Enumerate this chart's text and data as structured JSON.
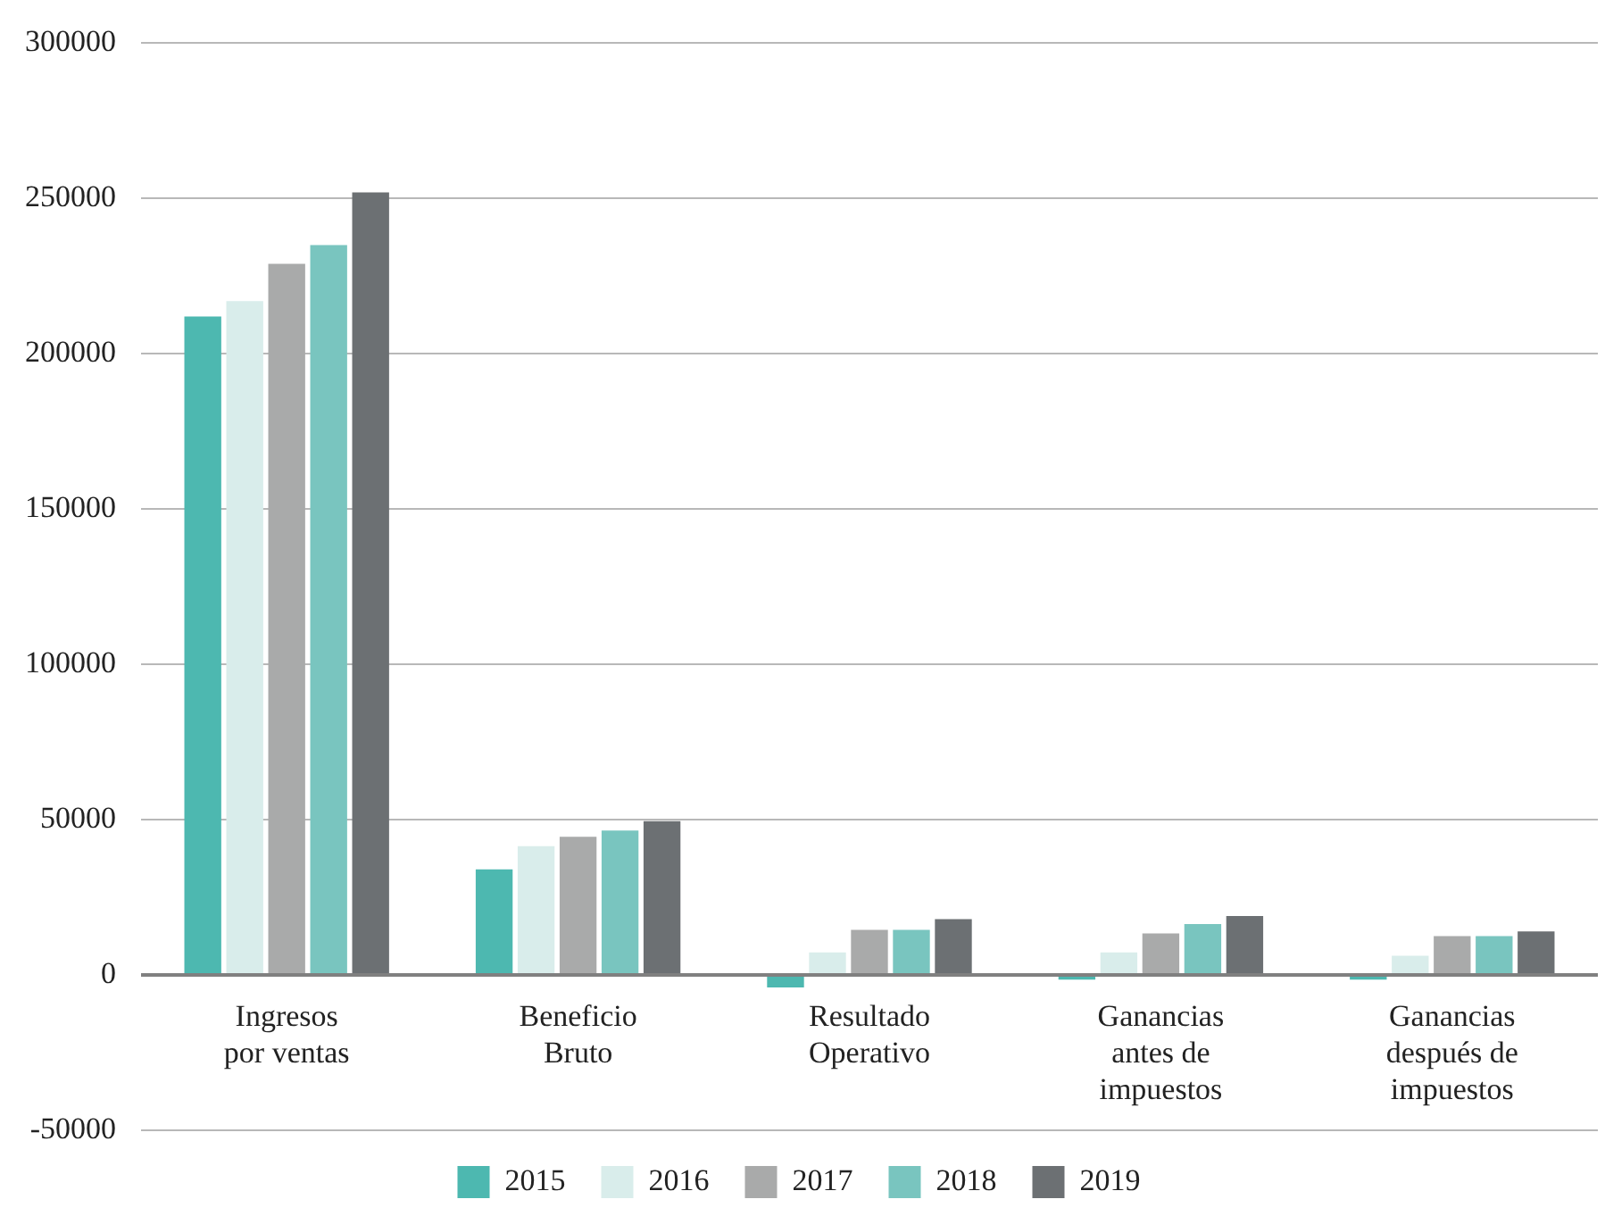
{
  "chart_data": {
    "type": "bar",
    "categories": [
      "Ingresos\npor ventas",
      "Beneficio\nBruto",
      "Resultado\nOperativo",
      "Ganancias\nantes de\nimpuestos",
      "Ganancias\ndespués de\nimpuestos"
    ],
    "series": [
      {
        "name": "2015",
        "color": "#4db8b0",
        "values": [
          212000,
          34000,
          -4000,
          -1500,
          -1500
        ]
      },
      {
        "name": "2016",
        "color": "#d9edeb",
        "values": [
          217000,
          41500,
          7300,
          7300,
          6200
        ]
      },
      {
        "name": "2017",
        "color": "#a9aaaa",
        "values": [
          229000,
          44500,
          14500,
          13400,
          12500
        ]
      },
      {
        "name": "2018",
        "color": "#79c5bf",
        "values": [
          235000,
          46500,
          14500,
          16400,
          12500
        ]
      },
      {
        "name": "2019",
        "color": "#6c7073",
        "values": [
          252000,
          49500,
          18000,
          19000,
          14000
        ]
      }
    ],
    "ylim": [
      -50000,
      300000
    ],
    "yticks": [
      -50000,
      0,
      50000,
      100000,
      150000,
      200000,
      250000,
      300000
    ],
    "grid": "y",
    "legend": "bottom"
  }
}
